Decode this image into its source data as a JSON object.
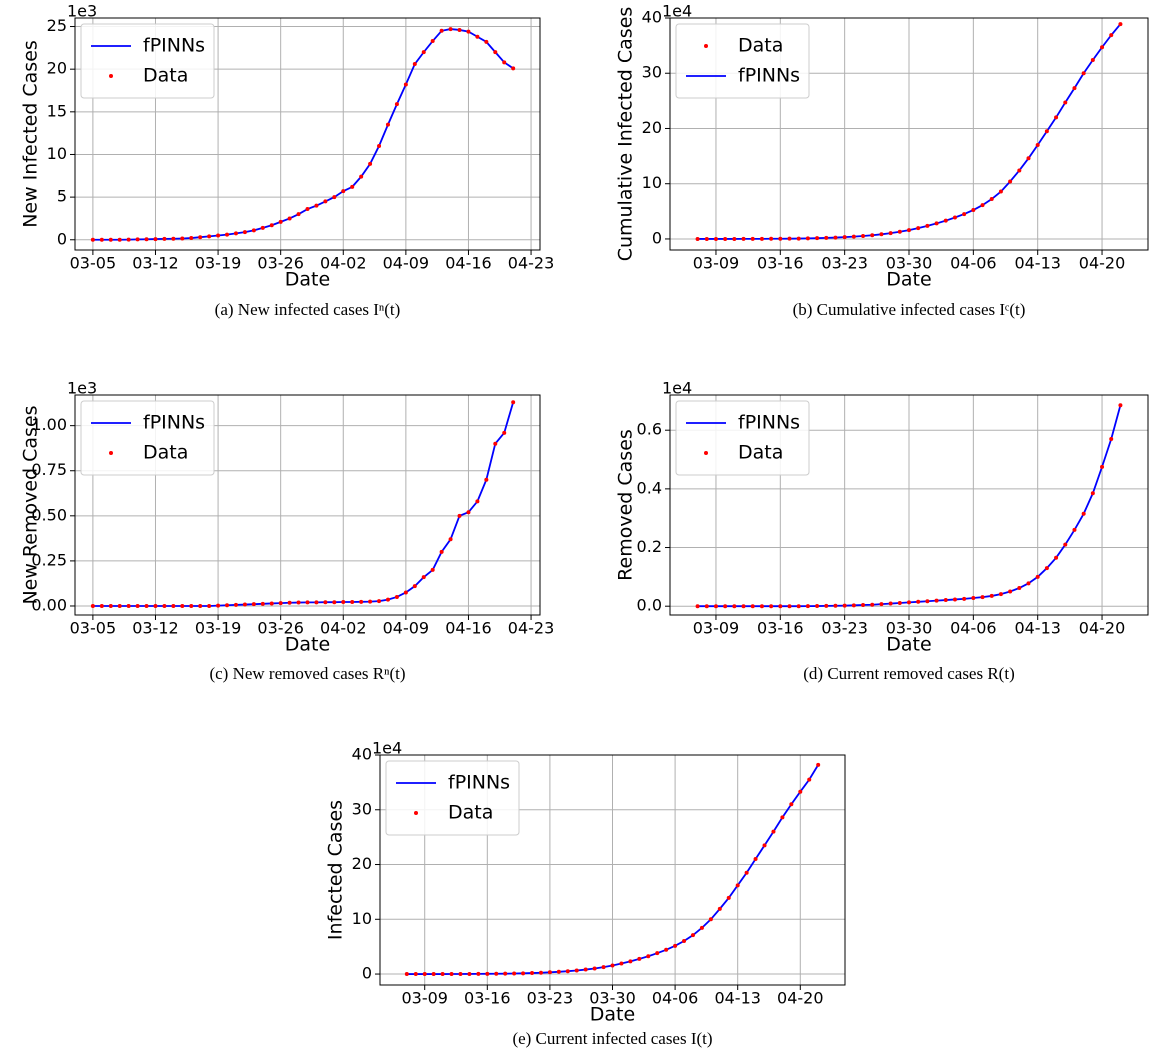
{
  "chart_data": [
    {
      "type": "line",
      "caption": "(a) New infected cases Iⁿ(t)",
      "ylabel": "New Infected Cases",
      "xlabel": "Date",
      "offset_label": "1e3",
      "x": [
        "03-05",
        "03-06",
        "03-07",
        "03-08",
        "03-09",
        "03-10",
        "03-11",
        "03-12",
        "03-13",
        "03-14",
        "03-15",
        "03-16",
        "03-17",
        "03-18",
        "03-19",
        "03-20",
        "03-21",
        "03-22",
        "03-23",
        "03-24",
        "03-25",
        "03-26",
        "03-27",
        "03-28",
        "03-29",
        "03-30",
        "03-31",
        "04-01",
        "04-02",
        "04-03",
        "04-04",
        "04-05",
        "04-06",
        "04-07",
        "04-08",
        "04-09",
        "04-10",
        "04-11",
        "04-12",
        "04-13",
        "04-14",
        "04-15",
        "04-16",
        "04-17",
        "04-18",
        "04-19",
        "04-20",
        "04-21"
      ],
      "series": [
        {
          "name": "fPINNs",
          "style": "line",
          "color": "#0000ff",
          "values": [
            0,
            0,
            0,
            0,
            0.02,
            0.05,
            0.06,
            0.08,
            0.1,
            0.12,
            0.15,
            0.2,
            0.3,
            0.4,
            0.5,
            0.6,
            0.75,
            0.9,
            1.1,
            1.4,
            1.7,
            2.1,
            2.5,
            3.0,
            3.6,
            4.0,
            4.5,
            5.0,
            5.7,
            6.2,
            7.4,
            8.9,
            11.0,
            13.5,
            15.9,
            18.2,
            20.6,
            22.0,
            23.3,
            24.5,
            24.7,
            24.6,
            24.4,
            23.8,
            23.2,
            22.0,
            20.8,
            20.1
          ]
        },
        {
          "name": "Data",
          "style": "dots",
          "color": "#ff0000",
          "values": [
            0,
            0,
            0,
            0,
            0.02,
            0.05,
            0.06,
            0.08,
            0.1,
            0.12,
            0.15,
            0.2,
            0.3,
            0.4,
            0.5,
            0.6,
            0.75,
            0.9,
            1.1,
            1.4,
            1.7,
            2.1,
            2.5,
            3.0,
            3.6,
            4.0,
            4.5,
            5.0,
            5.7,
            6.2,
            7.4,
            8.9,
            11.0,
            13.5,
            15.9,
            18.2,
            20.6,
            22.0,
            23.3,
            24.5,
            24.7,
            24.6,
            24.4,
            23.8,
            23.2,
            22.0,
            20.8,
            20.1
          ]
        }
      ],
      "xlim": [
        "03-03",
        "04-24"
      ],
      "xticks": [
        "03-05",
        "03-12",
        "03-19",
        "03-26",
        "04-02",
        "04-09",
        "04-16",
        "04-23"
      ],
      "ylim": [
        -1.2,
        26
      ],
      "yticks": [
        0,
        5,
        10,
        15,
        20,
        25
      ],
      "grid": true,
      "legend": "upper left"
    },
    {
      "type": "line",
      "caption": "(b) Cumulative infected cases Iᶜ(t)",
      "ylabel": "Cumulative Infected Cases",
      "xlabel": "Date",
      "offset_label": "1e4",
      "x": [
        "03-07",
        "03-08",
        "03-09",
        "03-10",
        "03-11",
        "03-12",
        "03-13",
        "03-14",
        "03-15",
        "03-16",
        "03-17",
        "03-18",
        "03-19",
        "03-20",
        "03-21",
        "03-22",
        "03-23",
        "03-24",
        "03-25",
        "03-26",
        "03-27",
        "03-28",
        "03-29",
        "03-30",
        "03-31",
        "04-01",
        "04-02",
        "04-03",
        "04-04",
        "04-05",
        "04-06",
        "04-07",
        "04-08",
        "04-09",
        "04-10",
        "04-11",
        "04-12",
        "04-13",
        "04-14",
        "04-15",
        "04-16",
        "04-17",
        "04-18",
        "04-19",
        "04-20",
        "04-21",
        "04-22"
      ],
      "series": [
        {
          "name": "Data",
          "style": "dots",
          "color": "#ff0000",
          "values": [
            0,
            0,
            0,
            0,
            0,
            0.01,
            0.01,
            0.02,
            0.03,
            0.04,
            0.05,
            0.07,
            0.1,
            0.14,
            0.19,
            0.25,
            0.33,
            0.42,
            0.53,
            0.67,
            0.84,
            1.05,
            1.3,
            1.6,
            1.96,
            2.36,
            2.81,
            3.31,
            3.88,
            4.5,
            5.24,
            6.13,
            7.23,
            8.58,
            10.4,
            12.4,
            14.6,
            17.0,
            19.5,
            22.0,
            24.7,
            27.3,
            30.0,
            32.4,
            34.7,
            36.9,
            38.9
          ]
        },
        {
          "name": "fPINNs",
          "style": "line",
          "color": "#0000ff",
          "values": [
            0,
            0,
            0,
            0,
            0,
            0.01,
            0.01,
            0.02,
            0.03,
            0.04,
            0.05,
            0.07,
            0.1,
            0.14,
            0.19,
            0.25,
            0.33,
            0.42,
            0.53,
            0.67,
            0.84,
            1.05,
            1.3,
            1.6,
            1.96,
            2.36,
            2.81,
            3.31,
            3.88,
            4.5,
            5.24,
            6.13,
            7.23,
            8.58,
            10.4,
            12.4,
            14.6,
            17.0,
            19.5,
            22.0,
            24.7,
            27.3,
            30.0,
            32.4,
            34.7,
            36.9,
            38.9
          ]
        }
      ],
      "xlim": [
        "03-04",
        "04-25"
      ],
      "xticks": [
        "03-09",
        "03-16",
        "03-23",
        "03-30",
        "04-06",
        "04-13",
        "04-20"
      ],
      "ylim": [
        -2,
        40
      ],
      "yticks": [
        0,
        10,
        20,
        30,
        40
      ],
      "grid": true,
      "legend": "upper left"
    },
    {
      "type": "line",
      "caption": "(c) New removed cases Rⁿ(t)",
      "ylabel": "New Removed Cases",
      "xlabel": "Date",
      "offset_label": "1e3",
      "x": [
        "03-05",
        "03-06",
        "03-07",
        "03-08",
        "03-09",
        "03-10",
        "03-11",
        "03-12",
        "03-13",
        "03-14",
        "03-15",
        "03-16",
        "03-17",
        "03-18",
        "03-19",
        "03-20",
        "03-21",
        "03-22",
        "03-23",
        "03-24",
        "03-25",
        "03-26",
        "03-27",
        "03-28",
        "03-29",
        "03-30",
        "03-31",
        "04-01",
        "04-02",
        "04-03",
        "04-04",
        "04-05",
        "04-06",
        "04-07",
        "04-08",
        "04-09",
        "04-10",
        "04-11",
        "04-12",
        "04-13",
        "04-14",
        "04-15",
        "04-16",
        "04-17",
        "04-18",
        "04-19",
        "04-20",
        "04-21"
      ],
      "series": [
        {
          "name": "fPINNs",
          "style": "line",
          "color": "#0000ff",
          "values": [
            0,
            0,
            0,
            0,
            0,
            0,
            0,
            0,
            0,
            0,
            0,
            0,
            0,
            0,
            0.002,
            0.004,
            0.006,
            0.008,
            0.01,
            0.012,
            0.014,
            0.016,
            0.018,
            0.019,
            0.02,
            0.02,
            0.021,
            0.021,
            0.022,
            0.022,
            0.023,
            0.024,
            0.027,
            0.035,
            0.05,
            0.075,
            0.11,
            0.16,
            0.2,
            0.3,
            0.37,
            0.5,
            0.52,
            0.58,
            0.7,
            0.9,
            0.96,
            1.13
          ]
        },
        {
          "name": "Data",
          "style": "dots",
          "color": "#ff0000",
          "values": [
            0,
            0,
            0,
            0,
            0,
            0,
            0,
            0,
            0,
            0,
            0,
            0,
            0,
            0,
            0.002,
            0.004,
            0.006,
            0.008,
            0.01,
            0.012,
            0.014,
            0.016,
            0.018,
            0.019,
            0.02,
            0.02,
            0.021,
            0.021,
            0.022,
            0.022,
            0.023,
            0.024,
            0.027,
            0.035,
            0.05,
            0.075,
            0.11,
            0.16,
            0.2,
            0.3,
            0.37,
            0.5,
            0.52,
            0.58,
            0.7,
            0.9,
            0.96,
            1.13
          ]
        }
      ],
      "xlim": [
        "03-03",
        "04-24"
      ],
      "xticks": [
        "03-05",
        "03-12",
        "03-19",
        "03-26",
        "04-02",
        "04-09",
        "04-16",
        "04-23"
      ],
      "ylim": [
        -0.05,
        1.17
      ],
      "yticks": [
        {
          "value": 0,
          "label": "0.00"
        },
        {
          "value": 0.25,
          "label": "0.25"
        },
        {
          "value": 0.5,
          "label": "0.50"
        },
        {
          "value": 0.75,
          "label": "0.75"
        },
        {
          "value": 1,
          "label": "1.00"
        }
      ],
      "grid": true,
      "legend": "upper left"
    },
    {
      "type": "line",
      "caption": "(d) Current removed cases R(t)",
      "ylabel": "Removed Cases",
      "xlabel": "Date",
      "offset_label": "1e4",
      "x": [
        "03-07",
        "03-08",
        "03-09",
        "03-10",
        "03-11",
        "03-12",
        "03-13",
        "03-14",
        "03-15",
        "03-16",
        "03-17",
        "03-18",
        "03-19",
        "03-20",
        "03-21",
        "03-22",
        "03-23",
        "03-24",
        "03-25",
        "03-26",
        "03-27",
        "03-28",
        "03-29",
        "03-30",
        "03-31",
        "04-01",
        "04-02",
        "04-03",
        "04-04",
        "04-05",
        "04-06",
        "04-07",
        "04-08",
        "04-09",
        "04-10",
        "04-11",
        "04-12",
        "04-13",
        "04-14",
        "04-15",
        "04-16",
        "04-17",
        "04-18",
        "04-19",
        "04-20",
        "04-21",
        "04-22"
      ],
      "series": [
        {
          "name": "fPINNs",
          "style": "line",
          "color": "#0000ff",
          "values": [
            0,
            0,
            0,
            0,
            0,
            0,
            0,
            0,
            0,
            0,
            0,
            0,
            0.0002,
            0.0005,
            0.001,
            0.0015,
            0.002,
            0.003,
            0.004,
            0.005,
            0.007,
            0.009,
            0.011,
            0.013,
            0.015,
            0.017,
            0.019,
            0.021,
            0.023,
            0.025,
            0.028,
            0.031,
            0.035,
            0.041,
            0.05,
            0.062,
            0.078,
            0.1,
            0.13,
            0.165,
            0.21,
            0.26,
            0.315,
            0.385,
            0.475,
            0.57,
            0.685
          ]
        },
        {
          "name": "Data",
          "style": "dots",
          "color": "#ff0000",
          "values": [
            0,
            0,
            0,
            0,
            0,
            0,
            0,
            0,
            0,
            0,
            0,
            0,
            0.0002,
            0.0005,
            0.001,
            0.0015,
            0.002,
            0.003,
            0.004,
            0.005,
            0.007,
            0.009,
            0.011,
            0.013,
            0.015,
            0.017,
            0.019,
            0.021,
            0.023,
            0.025,
            0.028,
            0.031,
            0.035,
            0.041,
            0.05,
            0.062,
            0.078,
            0.1,
            0.13,
            0.165,
            0.21,
            0.26,
            0.315,
            0.385,
            0.475,
            0.57,
            0.685
          ]
        }
      ],
      "xlim": [
        "03-04",
        "04-25"
      ],
      "xticks": [
        "03-09",
        "03-16",
        "03-23",
        "03-30",
        "04-06",
        "04-13",
        "04-20"
      ],
      "ylim": [
        -0.03,
        0.72
      ],
      "yticks": [
        {
          "value": 0,
          "label": "0.0"
        },
        0.2,
        0.4,
        0.6
      ],
      "grid": true,
      "legend": "upper left"
    },
    {
      "type": "line",
      "caption": "(e) Current infected cases I(t)",
      "ylabel": "Infected Cases",
      "xlabel": "Date",
      "offset_label": "1e4",
      "x": [
        "03-07",
        "03-08",
        "03-09",
        "03-10",
        "03-11",
        "03-12",
        "03-13",
        "03-14",
        "03-15",
        "03-16",
        "03-17",
        "03-18",
        "03-19",
        "03-20",
        "03-21",
        "03-22",
        "03-23",
        "03-24",
        "03-25",
        "03-26",
        "03-27",
        "03-28",
        "03-29",
        "03-30",
        "03-31",
        "04-01",
        "04-02",
        "04-03",
        "04-04",
        "04-05",
        "04-06",
        "04-07",
        "04-08",
        "04-09",
        "04-10",
        "04-11",
        "04-12",
        "04-13",
        "04-14",
        "04-15",
        "04-16",
        "04-17",
        "04-18",
        "04-19",
        "04-20",
        "04-21",
        "04-22"
      ],
      "series": [
        {
          "name": "fPINNs",
          "style": "line",
          "color": "#0000ff",
          "values": [
            0,
            0,
            0,
            0,
            0,
            0.01,
            0.01,
            0.02,
            0.03,
            0.04,
            0.05,
            0.07,
            0.1,
            0.13,
            0.18,
            0.24,
            0.32,
            0.41,
            0.52,
            0.65,
            0.82,
            1.02,
            1.27,
            1.57,
            1.92,
            2.32,
            2.76,
            3.25,
            3.81,
            4.43,
            5.15,
            6.03,
            7.1,
            8.43,
            10.0,
            11.9,
            13.9,
            16.2,
            18.5,
            21.0,
            23.5,
            26.0,
            28.6,
            31.0,
            33.3,
            35.5,
            38.2
          ]
        },
        {
          "name": "Data",
          "style": "dots",
          "color": "#ff0000",
          "values": [
            0,
            0,
            0,
            0,
            0,
            0.01,
            0.01,
            0.02,
            0.03,
            0.04,
            0.05,
            0.07,
            0.1,
            0.13,
            0.18,
            0.24,
            0.32,
            0.41,
            0.52,
            0.65,
            0.82,
            1.02,
            1.27,
            1.57,
            1.92,
            2.32,
            2.76,
            3.25,
            3.81,
            4.43,
            5.15,
            6.03,
            7.1,
            8.43,
            10.0,
            11.9,
            13.9,
            16.2,
            18.5,
            21.0,
            23.5,
            26.0,
            28.6,
            31.0,
            33.3,
            35.5,
            38.2
          ]
        }
      ],
      "xlim": [
        "03-04",
        "04-25"
      ],
      "xticks": [
        "03-09",
        "03-16",
        "03-23",
        "03-30",
        "04-06",
        "04-13",
        "04-20"
      ],
      "ylim": [
        -2,
        40
      ],
      "yticks": [
        0,
        10,
        20,
        30,
        40
      ],
      "grid": true,
      "legend": "upper left"
    }
  ]
}
